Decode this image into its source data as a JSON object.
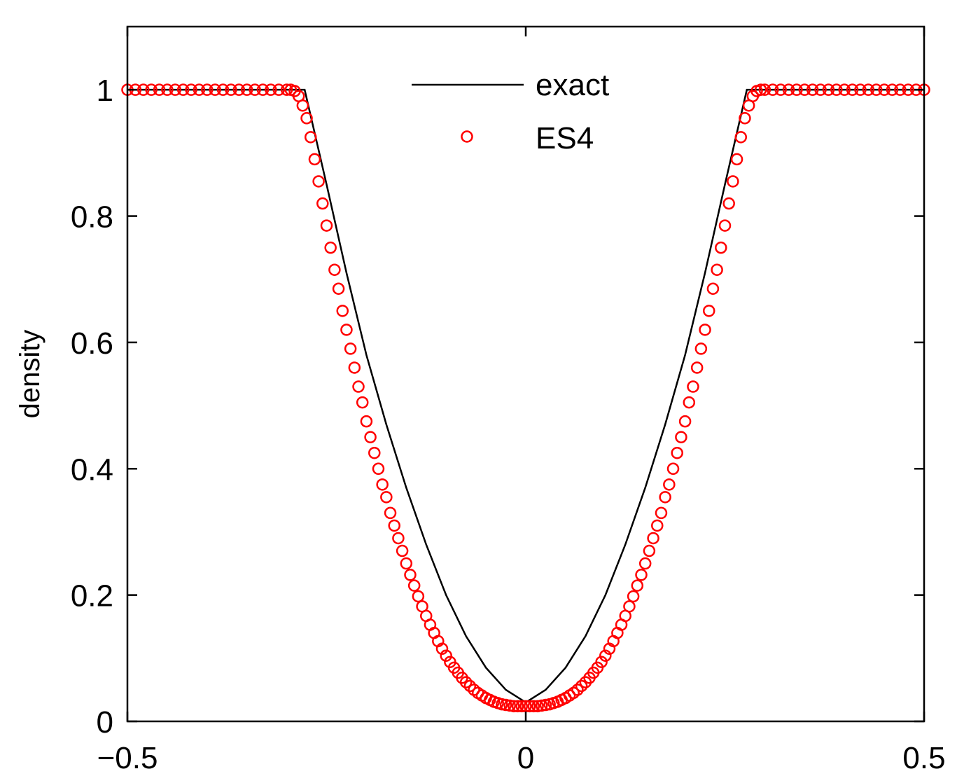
{
  "chart_data": {
    "type": "line",
    "title": "",
    "xlabel": "",
    "ylabel": "density",
    "xlim": [
      -0.5,
      0.5
    ],
    "ylim": [
      0,
      1.1
    ],
    "xticks": [
      -0.5,
      0,
      0.5
    ],
    "xtick_labels": [
      "−0.5",
      "0",
      "0.5"
    ],
    "yticks": [
      0,
      0.2,
      0.4,
      0.6,
      0.8,
      1
    ],
    "ytick_labels": [
      "0",
      "0.2",
      "0.4",
      "0.6",
      "0.8",
      "1"
    ],
    "grid": false,
    "legend_position": "top-center",
    "colors": {
      "exact": "#000000",
      "es4": "#ff0000"
    },
    "series": [
      {
        "name": "exact",
        "style": "line",
        "points": [
          [
            -0.5,
            1.0
          ],
          [
            -0.2775,
            1.0
          ],
          [
            -0.25,
            0.85
          ],
          [
            -0.225,
            0.71
          ],
          [
            -0.2,
            0.58
          ],
          [
            -0.175,
            0.47
          ],
          [
            -0.15,
            0.37
          ],
          [
            -0.125,
            0.28
          ],
          [
            -0.1,
            0.2
          ],
          [
            -0.075,
            0.135
          ],
          [
            -0.05,
            0.085
          ],
          [
            -0.025,
            0.05
          ],
          [
            0.0,
            0.03
          ],
          [
            0.025,
            0.05
          ],
          [
            0.05,
            0.085
          ],
          [
            0.075,
            0.135
          ],
          [
            0.1,
            0.2
          ],
          [
            0.125,
            0.28
          ],
          [
            0.15,
            0.37
          ],
          [
            0.175,
            0.47
          ],
          [
            0.2,
            0.58
          ],
          [
            0.225,
            0.71
          ],
          [
            0.25,
            0.85
          ],
          [
            0.2775,
            1.0
          ],
          [
            0.5,
            1.0
          ]
        ]
      },
      {
        "name": "ES4",
        "style": "marker",
        "marker": "circle",
        "points": [
          [
            -0.5,
            1.0
          ],
          [
            -0.49,
            1.0
          ],
          [
            -0.48,
            1.0
          ],
          [
            -0.47,
            1.0
          ],
          [
            -0.46,
            1.0
          ],
          [
            -0.45,
            1.0
          ],
          [
            -0.44,
            1.0
          ],
          [
            -0.43,
            1.0
          ],
          [
            -0.42,
            1.0
          ],
          [
            -0.41,
            1.0
          ],
          [
            -0.4,
            1.0
          ],
          [
            -0.39,
            1.0
          ],
          [
            -0.38,
            1.0
          ],
          [
            -0.37,
            1.0
          ],
          [
            -0.36,
            1.0
          ],
          [
            -0.35,
            1.0
          ],
          [
            -0.34,
            1.0
          ],
          [
            -0.33,
            1.0
          ],
          [
            -0.32,
            1.0
          ],
          [
            -0.31,
            1.0
          ],
          [
            -0.3,
            1.0
          ],
          [
            -0.295,
            1.0
          ],
          [
            -0.29,
            0.998
          ],
          [
            -0.285,
            0.99
          ],
          [
            -0.28,
            0.975
          ],
          [
            -0.275,
            0.955
          ],
          [
            -0.27,
            0.925
          ],
          [
            -0.265,
            0.89
          ],
          [
            -0.26,
            0.855
          ],
          [
            -0.255,
            0.82
          ],
          [
            -0.25,
            0.785
          ],
          [
            -0.245,
            0.75
          ],
          [
            -0.24,
            0.715
          ],
          [
            -0.235,
            0.685
          ],
          [
            -0.23,
            0.65
          ],
          [
            -0.225,
            0.62
          ],
          [
            -0.22,
            0.59
          ],
          [
            -0.215,
            0.56
          ],
          [
            -0.21,
            0.53
          ],
          [
            -0.205,
            0.505
          ],
          [
            -0.2,
            0.475
          ],
          [
            -0.195,
            0.45
          ],
          [
            -0.19,
            0.425
          ],
          [
            -0.185,
            0.4
          ],
          [
            -0.18,
            0.375
          ],
          [
            -0.175,
            0.355
          ],
          [
            -0.17,
            0.33
          ],
          [
            -0.165,
            0.31
          ],
          [
            -0.16,
            0.29
          ],
          [
            -0.155,
            0.27
          ],
          [
            -0.15,
            0.25
          ],
          [
            -0.145,
            0.232
          ],
          [
            -0.14,
            0.215
          ],
          [
            -0.135,
            0.198
          ],
          [
            -0.13,
            0.182
          ],
          [
            -0.125,
            0.167
          ],
          [
            -0.12,
            0.153
          ],
          [
            -0.115,
            0.14
          ],
          [
            -0.11,
            0.127
          ],
          [
            -0.105,
            0.115
          ],
          [
            -0.1,
            0.104
          ],
          [
            -0.095,
            0.094
          ],
          [
            -0.09,
            0.085
          ],
          [
            -0.085,
            0.077
          ],
          [
            -0.08,
            0.069
          ],
          [
            -0.075,
            0.062
          ],
          [
            -0.07,
            0.056
          ],
          [
            -0.065,
            0.05
          ],
          [
            -0.06,
            0.045
          ],
          [
            -0.055,
            0.041
          ],
          [
            -0.05,
            0.037
          ],
          [
            -0.045,
            0.034
          ],
          [
            -0.04,
            0.031
          ],
          [
            -0.035,
            0.029
          ],
          [
            -0.03,
            0.027
          ],
          [
            -0.025,
            0.026
          ],
          [
            -0.02,
            0.025
          ],
          [
            -0.015,
            0.024
          ],
          [
            -0.01,
            0.024
          ],
          [
            -0.005,
            0.024
          ],
          [
            0.0,
            0.024
          ],
          [
            0.005,
            0.024
          ],
          [
            0.01,
            0.024
          ],
          [
            0.015,
            0.024
          ],
          [
            0.02,
            0.025
          ],
          [
            0.025,
            0.026
          ],
          [
            0.03,
            0.027
          ],
          [
            0.035,
            0.029
          ],
          [
            0.04,
            0.031
          ],
          [
            0.045,
            0.034
          ],
          [
            0.05,
            0.037
          ],
          [
            0.055,
            0.041
          ],
          [
            0.06,
            0.045
          ],
          [
            0.065,
            0.05
          ],
          [
            0.07,
            0.056
          ],
          [
            0.075,
            0.062
          ],
          [
            0.08,
            0.069
          ],
          [
            0.085,
            0.077
          ],
          [
            0.09,
            0.085
          ],
          [
            0.095,
            0.094
          ],
          [
            0.1,
            0.104
          ],
          [
            0.105,
            0.115
          ],
          [
            0.11,
            0.127
          ],
          [
            0.115,
            0.14
          ],
          [
            0.12,
            0.153
          ],
          [
            0.125,
            0.167
          ],
          [
            0.13,
            0.182
          ],
          [
            0.135,
            0.198
          ],
          [
            0.14,
            0.215
          ],
          [
            0.145,
            0.232
          ],
          [
            0.15,
            0.25
          ],
          [
            0.155,
            0.27
          ],
          [
            0.16,
            0.29
          ],
          [
            0.165,
            0.31
          ],
          [
            0.17,
            0.33
          ],
          [
            0.175,
            0.355
          ],
          [
            0.18,
            0.375
          ],
          [
            0.185,
            0.4
          ],
          [
            0.19,
            0.425
          ],
          [
            0.195,
            0.45
          ],
          [
            0.2,
            0.475
          ],
          [
            0.205,
            0.505
          ],
          [
            0.21,
            0.53
          ],
          [
            0.215,
            0.56
          ],
          [
            0.22,
            0.59
          ],
          [
            0.225,
            0.62
          ],
          [
            0.23,
            0.65
          ],
          [
            0.235,
            0.685
          ],
          [
            0.24,
            0.715
          ],
          [
            0.245,
            0.75
          ],
          [
            0.25,
            0.785
          ],
          [
            0.255,
            0.82
          ],
          [
            0.26,
            0.855
          ],
          [
            0.265,
            0.89
          ],
          [
            0.27,
            0.925
          ],
          [
            0.275,
            0.955
          ],
          [
            0.28,
            0.975
          ],
          [
            0.285,
            0.99
          ],
          [
            0.29,
            0.998
          ],
          [
            0.295,
            1.0
          ],
          [
            0.3,
            1.0
          ],
          [
            0.31,
            1.0
          ],
          [
            0.32,
            1.0
          ],
          [
            0.33,
            1.0
          ],
          [
            0.34,
            1.0
          ],
          [
            0.35,
            1.0
          ],
          [
            0.36,
            1.0
          ],
          [
            0.37,
            1.0
          ],
          [
            0.38,
            1.0
          ],
          [
            0.39,
            1.0
          ],
          [
            0.4,
            1.0
          ],
          [
            0.41,
            1.0
          ],
          [
            0.42,
            1.0
          ],
          [
            0.43,
            1.0
          ],
          [
            0.44,
            1.0
          ],
          [
            0.45,
            1.0
          ],
          [
            0.46,
            1.0
          ],
          [
            0.47,
            1.0
          ],
          [
            0.48,
            1.0
          ],
          [
            0.49,
            1.0
          ],
          [
            0.5,
            1.0
          ]
        ]
      }
    ]
  }
}
